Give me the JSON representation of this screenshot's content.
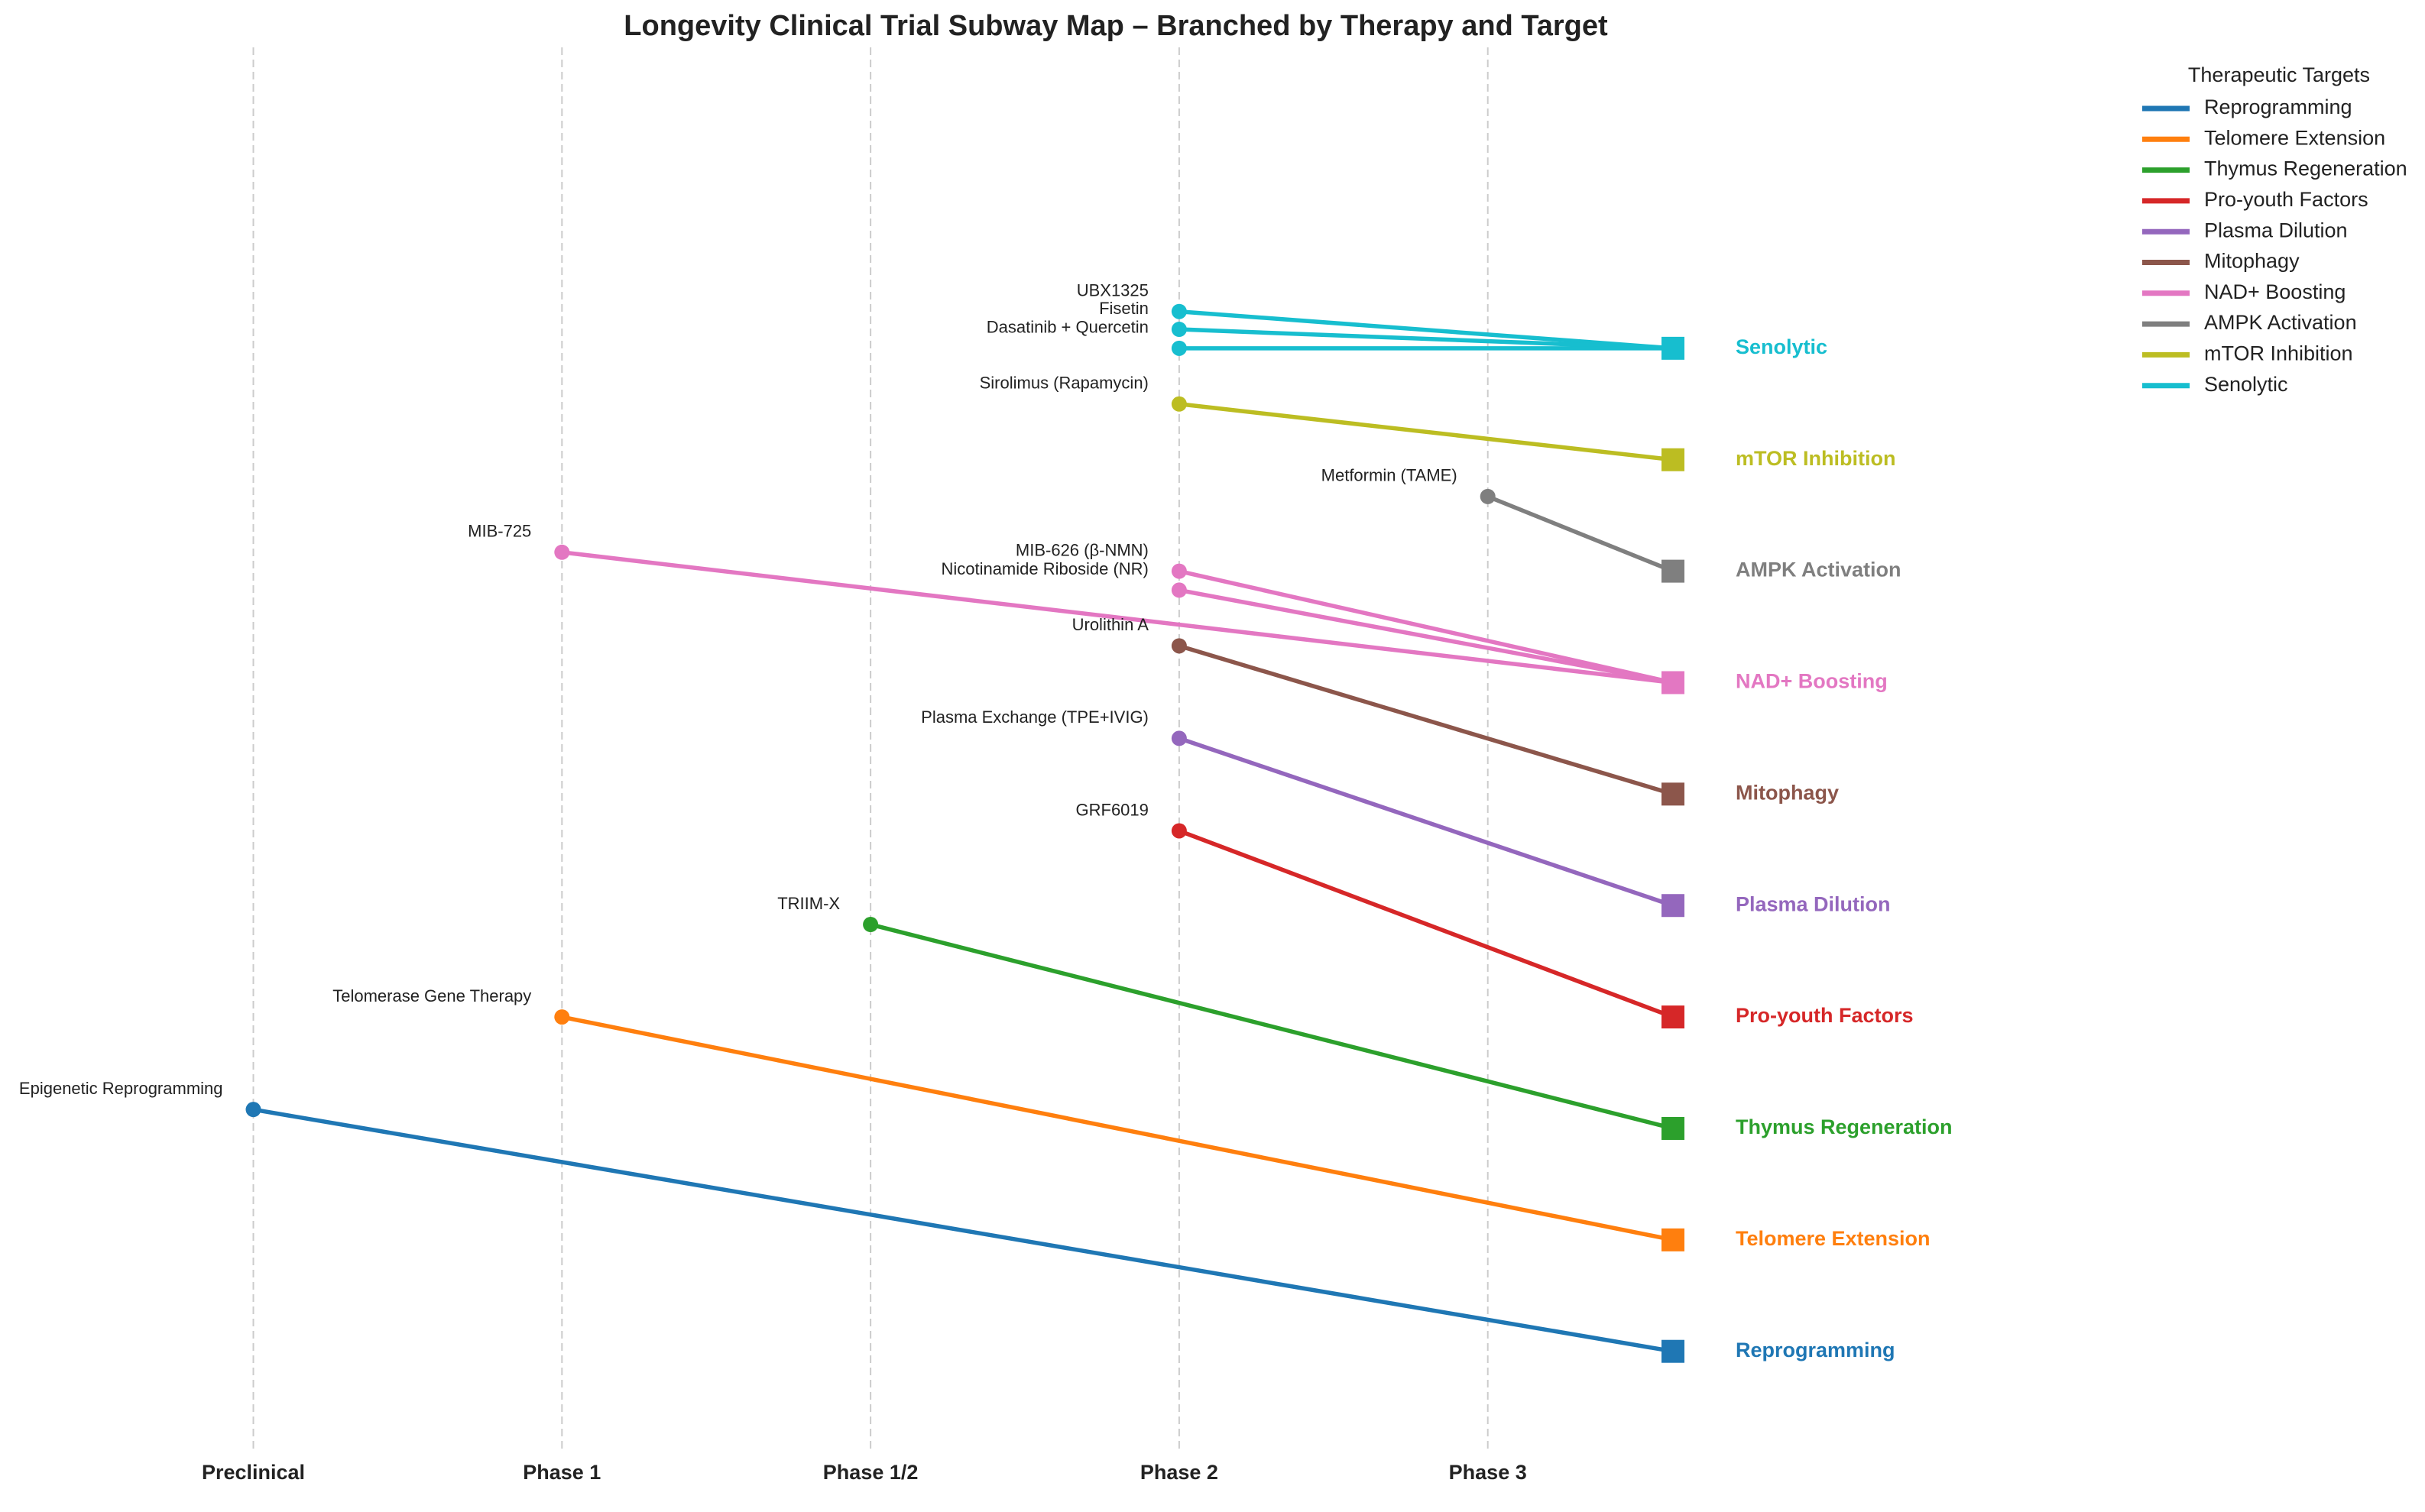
{
  "chart_data": {
    "type": "subway",
    "title": "Longevity Clinical Trial Subway Map – Branched by Therapy and Target",
    "categories": [
      "Preclinical",
      "Phase 1",
      "Phase 1/2",
      "Phase 2",
      "Phase 3"
    ],
    "ylim": [
      -0.9,
      11.7
    ],
    "grid": true,
    "legend_title": "Therapeutic Targets",
    "legend_position": "upper right",
    "series": [
      {
        "name": "Reprogramming",
        "color": "#1f77b4",
        "y": 0,
        "trials": [
          {
            "name": "Epigenetic Reprogramming",
            "phase": 0,
            "y": 2.17
          }
        ]
      },
      {
        "name": "Telomere Extension",
        "color": "#ff7f0e",
        "y": 1,
        "trials": [
          {
            "name": "Telomerase Gene Therapy",
            "phase": 1,
            "y": 3.0
          }
        ]
      },
      {
        "name": "Thymus Regeneration",
        "color": "#2ca02c",
        "y": 2,
        "trials": [
          {
            "name": "TRIIM-X",
            "phase": 2,
            "y": 3.83
          }
        ]
      },
      {
        "name": "Pro-youth Factors",
        "color": "#d62728",
        "y": 3,
        "trials": [
          {
            "name": "GRF6019",
            "phase": 3,
            "y": 4.67
          }
        ]
      },
      {
        "name": "Plasma Dilution",
        "color": "#9467bd",
        "y": 4,
        "trials": [
          {
            "name": "Plasma Exchange (TPE+IVIG)",
            "phase": 3,
            "y": 5.5
          }
        ]
      },
      {
        "name": "Mitophagy",
        "color": "#8c564b",
        "y": 5,
        "trials": [
          {
            "name": "Urolithin A",
            "phase": 3,
            "y": 6.33
          }
        ]
      },
      {
        "name": "NAD+ Boosting",
        "color": "#e377c2",
        "y": 6,
        "trials": [
          {
            "name": "MIB-725",
            "phase": 1,
            "y": 7.17
          },
          {
            "name": "MIB-626 (β-NMN)",
            "phase": 3,
            "y": 7.0
          },
          {
            "name": "Nicotinamide Riboside (NR)",
            "phase": 3,
            "y": 6.83
          }
        ]
      },
      {
        "name": "AMPK Activation",
        "color": "#7f7f7f",
        "y": 7,
        "trials": [
          {
            "name": "Metformin (TAME)",
            "phase": 4,
            "y": 7.67
          }
        ]
      },
      {
        "name": "mTOR Inhibition",
        "color": "#bcbd22",
        "y": 8,
        "trials": [
          {
            "name": "Sirolimus (Rapamycin)",
            "phase": 3,
            "y": 8.5
          }
        ]
      },
      {
        "name": "Senolytic",
        "color": "#17becf",
        "y": 9,
        "trials": [
          {
            "name": "UBX1325",
            "phase": 3,
            "y": 9.33
          },
          {
            "name": "Fisetin",
            "phase": 3,
            "y": 9.17
          },
          {
            "name": "Dasatinib + Quercetin",
            "phase": 3,
            "y": 9.0
          }
        ]
      }
    ]
  }
}
